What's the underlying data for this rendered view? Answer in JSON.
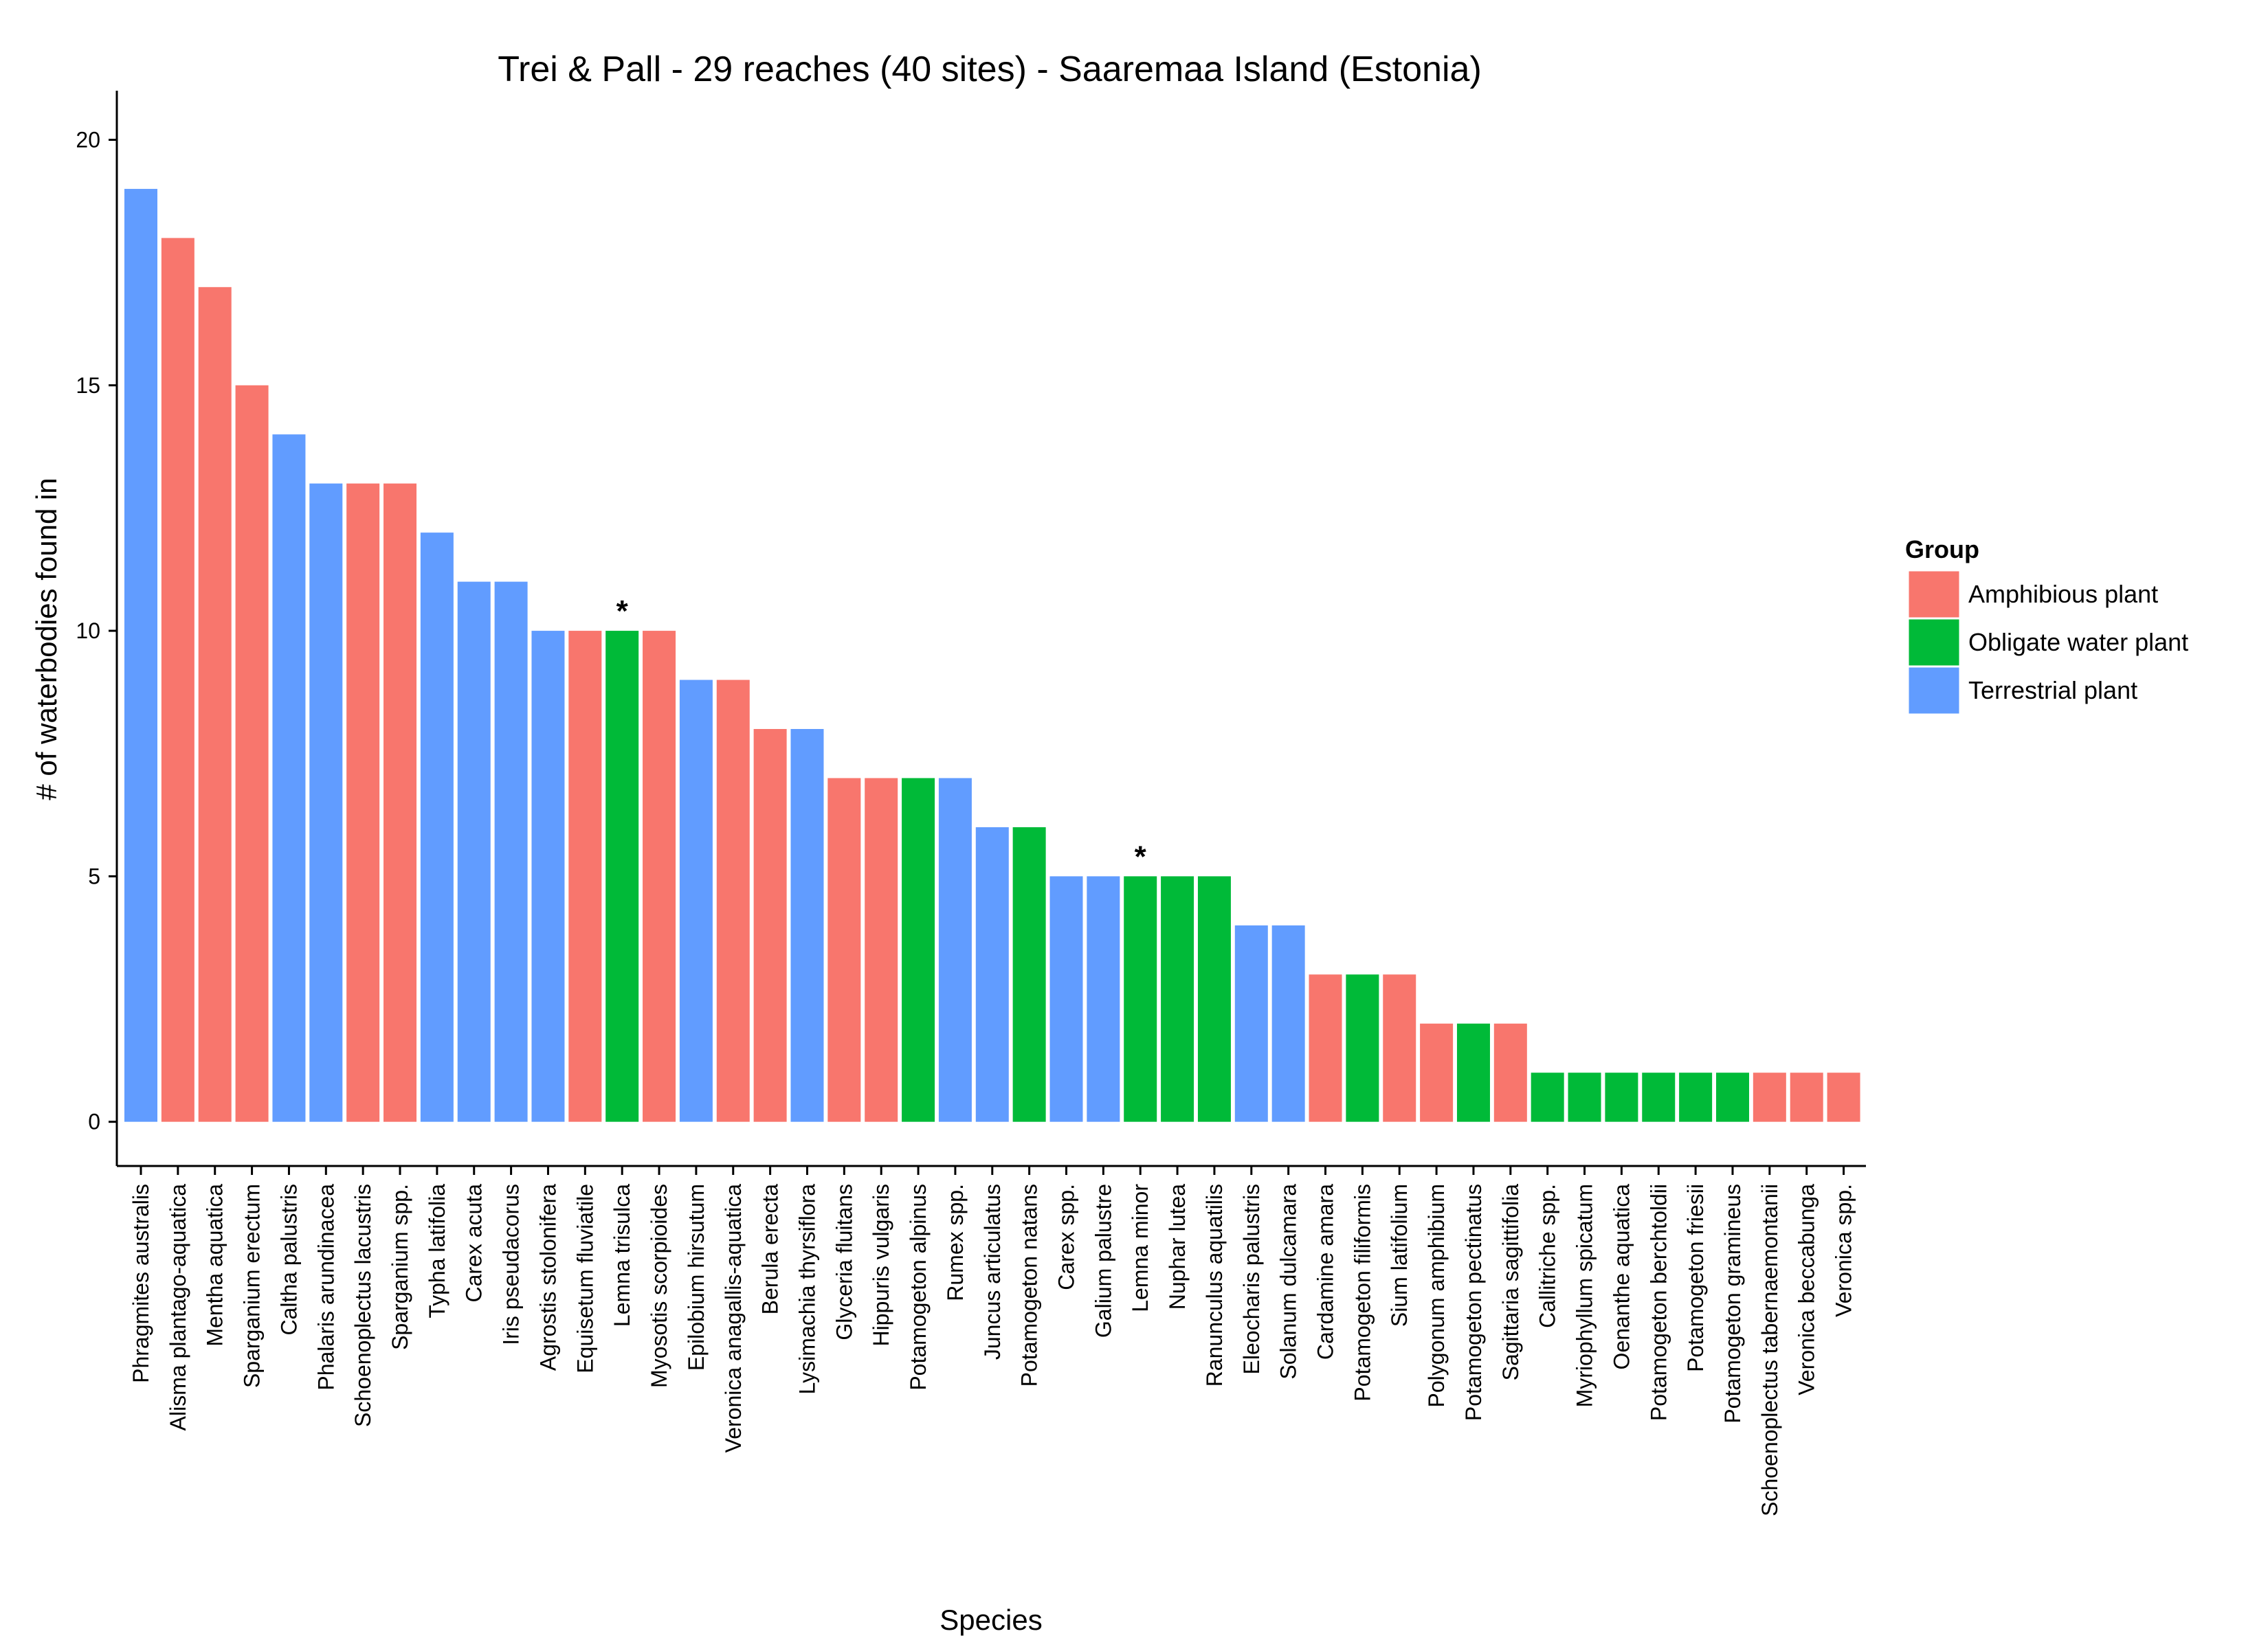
{
  "chart_data": {
    "type": "bar",
    "title": "Trei & Pall - 29 reaches (40 sites) - Saaremaa Island (Estonia)",
    "xlabel": "Species",
    "ylabel": "# of waterbodies found in",
    "ylim": [
      -0.9,
      21
    ],
    "yticks": [
      0,
      5,
      10,
      15,
      20
    ],
    "grid": false,
    "legend": {
      "title": "Group",
      "placement": "right",
      "entries": [
        {
          "name": "Amphibious plant",
          "color": "#F8766D"
        },
        {
          "name": "Obligate water plant",
          "color": "#00BA38"
        },
        {
          "name": "Terrestrial plant",
          "color": "#619CFF"
        }
      ]
    },
    "bars": [
      {
        "label": "Phragmites australis",
        "value": 19,
        "group": "Terrestrial plant"
      },
      {
        "label": "Alisma plantago-aquatica",
        "value": 18,
        "group": "Amphibious plant"
      },
      {
        "label": "Mentha aquatica",
        "value": 17,
        "group": "Amphibious plant"
      },
      {
        "label": "Sparganium erectum",
        "value": 15,
        "group": "Amphibious plant"
      },
      {
        "label": "Caltha palustris",
        "value": 14,
        "group": "Terrestrial plant"
      },
      {
        "label": "Phalaris arundinacea",
        "value": 13,
        "group": "Terrestrial plant"
      },
      {
        "label": "Schoenoplectus lacustris",
        "value": 13,
        "group": "Amphibious plant"
      },
      {
        "label": "Sparganium spp.",
        "value": 13,
        "group": "Amphibious plant"
      },
      {
        "label": "Typha latifolia",
        "value": 12,
        "group": "Terrestrial plant"
      },
      {
        "label": "Carex acuta",
        "value": 11,
        "group": "Terrestrial plant"
      },
      {
        "label": "Iris pseudacorus",
        "value": 11,
        "group": "Terrestrial plant"
      },
      {
        "label": "Agrostis stolonifera",
        "value": 10,
        "group": "Terrestrial plant"
      },
      {
        "label": "Equisetum fluviatile",
        "value": 10,
        "group": "Amphibious plant"
      },
      {
        "label": "Lemna trisulca",
        "value": 10,
        "group": "Obligate water plant",
        "annotation": "*"
      },
      {
        "label": "Myosotis scorpioides",
        "value": 10,
        "group": "Amphibious plant"
      },
      {
        "label": "Epilobium hirsutum",
        "value": 9,
        "group": "Terrestrial plant"
      },
      {
        "label": "Veronica anagallis-aquatica",
        "value": 9,
        "group": "Amphibious plant"
      },
      {
        "label": "Berula erecta",
        "value": 8,
        "group": "Amphibious plant"
      },
      {
        "label": "Lysimachia thyrsiflora",
        "value": 8,
        "group": "Terrestrial plant"
      },
      {
        "label": "Glyceria fluitans",
        "value": 7,
        "group": "Amphibious plant"
      },
      {
        "label": "Hippuris vulgaris",
        "value": 7,
        "group": "Amphibious plant"
      },
      {
        "label": "Potamogeton alpinus",
        "value": 7,
        "group": "Obligate water plant"
      },
      {
        "label": "Rumex spp.",
        "value": 7,
        "group": "Terrestrial plant"
      },
      {
        "label": "Juncus articulatus",
        "value": 6,
        "group": "Terrestrial plant"
      },
      {
        "label": "Potamogeton natans",
        "value": 6,
        "group": "Obligate water plant"
      },
      {
        "label": "Carex spp.",
        "value": 5,
        "group": "Terrestrial plant"
      },
      {
        "label": "Galium palustre",
        "value": 5,
        "group": "Terrestrial plant"
      },
      {
        "label": "Lemna minor",
        "value": 5,
        "group": "Obligate water plant",
        "annotation": "*"
      },
      {
        "label": "Nuphar lutea",
        "value": 5,
        "group": "Obligate water plant"
      },
      {
        "label": "Ranunculus aquatilis",
        "value": 5,
        "group": "Obligate water plant"
      },
      {
        "label": "Eleocharis palustris",
        "value": 4,
        "group": "Terrestrial plant"
      },
      {
        "label": "Solanum dulcamara",
        "value": 4,
        "group": "Terrestrial plant"
      },
      {
        "label": "Cardamine amara",
        "value": 3,
        "group": "Amphibious plant"
      },
      {
        "label": "Potamogeton filiformis",
        "value": 3,
        "group": "Obligate water plant"
      },
      {
        "label": "Sium latifolium",
        "value": 3,
        "group": "Amphibious plant"
      },
      {
        "label": "Polygonum amphibium",
        "value": 2,
        "group": "Amphibious plant"
      },
      {
        "label": "Potamogeton pectinatus",
        "value": 2,
        "group": "Obligate water plant"
      },
      {
        "label": "Sagittaria sagittifolia",
        "value": 2,
        "group": "Amphibious plant"
      },
      {
        "label": "Callitriche spp.",
        "value": 1,
        "group": "Obligate water plant"
      },
      {
        "label": "Myriophyllum spicatum",
        "value": 1,
        "group": "Obligate water plant"
      },
      {
        "label": "Oenanthe aquatica",
        "value": 1,
        "group": "Obligate water plant"
      },
      {
        "label": "Potamogeton berchtoldii",
        "value": 1,
        "group": "Obligate water plant"
      },
      {
        "label": "Potamogeton friesii",
        "value": 1,
        "group": "Obligate water plant"
      },
      {
        "label": "Potamogeton gramineus",
        "value": 1,
        "group": "Obligate water plant"
      },
      {
        "label": "Schoenoplectus tabernaemontanii",
        "value": 1,
        "group": "Amphibious plant"
      },
      {
        "label": "Veronica beccabunga",
        "value": 1,
        "group": "Amphibious plant"
      },
      {
        "label": "Veronica spp.",
        "value": 1,
        "group": "Amphibious plant"
      }
    ]
  }
}
